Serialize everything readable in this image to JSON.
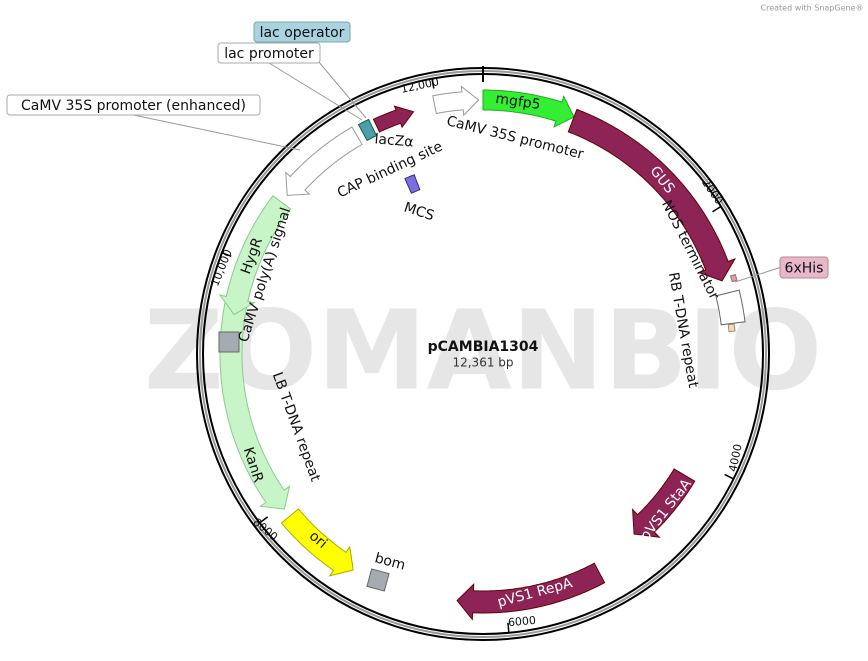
{
  "credit": "Created with SnapGene®",
  "watermark": "ZOMANBIO",
  "plasmid": {
    "name": "pCAMBIA1304",
    "size": "12,361 bp"
  },
  "ticks": [
    "2000",
    "4000",
    "6000",
    "8000",
    "10,000",
    "12,000"
  ],
  "features": [
    {
      "label": "mgfp5"
    },
    {
      "label": "CaMV 35S promoter"
    },
    {
      "label": "GUS"
    },
    {
      "label": "NOS terminator"
    },
    {
      "label": "RB T-DNA repeat"
    },
    {
      "label": "pVS1 StaA"
    },
    {
      "label": "pVS1 RepA"
    },
    {
      "label": "bom"
    },
    {
      "label": "ori"
    },
    {
      "label": "KanR"
    },
    {
      "label": "LB T-DNA repeat"
    },
    {
      "label": "CaMV poly(A) signal"
    },
    {
      "label": "HygR"
    },
    {
      "label": "lacZα"
    },
    {
      "label": "CAP binding site"
    },
    {
      "label": "MCS"
    }
  ],
  "callouts": [
    {
      "label": "lac operator"
    },
    {
      "label": "lac promoter"
    },
    {
      "label": "CaMV 35S promoter (enhanced)"
    },
    {
      "label": "6xHis"
    }
  ]
}
